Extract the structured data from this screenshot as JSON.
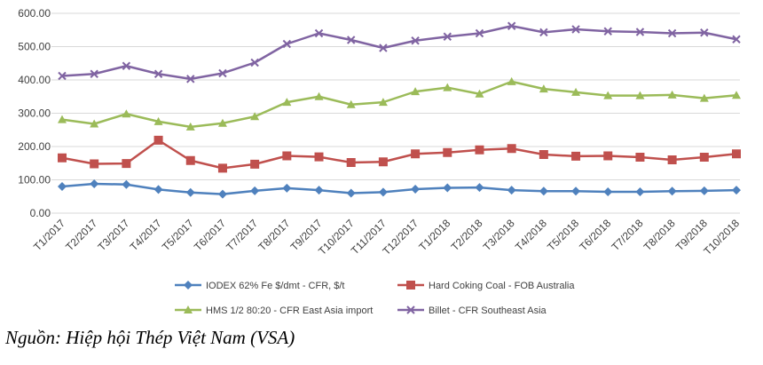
{
  "chart_data": {
    "type": "line",
    "title": "",
    "xlabel": "",
    "ylabel": "",
    "ylim": [
      0,
      600
    ],
    "y_ticks": [
      "0.00",
      "100.00",
      "200.00",
      "300.00",
      "400.00",
      "500.00",
      "600.00"
    ],
    "y_tick_values": [
      0,
      100,
      200,
      300,
      400,
      500,
      600
    ],
    "grid": true,
    "legend_position": "bottom",
    "categories": [
      "T1/2017",
      "T2/2017",
      "T3/2017",
      "T4/2017",
      "T5/2017",
      "T6/2017",
      "T7/2017",
      "T8/2017",
      "T9/2017",
      "T10/2017",
      "T11/2017",
      "T12/2017",
      "T1/2018",
      "T2/2018",
      "T3/2018",
      "T4/2018",
      "T5/2018",
      "T6/2018",
      "T7/2018",
      "T8/2018",
      "T9/2018",
      "T10/2018"
    ],
    "series": [
      {
        "name": "IODEX 62% Fe $/dmt - CFR, $/t",
        "color": "#4f81bd",
        "marker": "diamond",
        "values": [
          80,
          88,
          86,
          71,
          62,
          57,
          67,
          75,
          69,
          60,
          63,
          72,
          76,
          77,
          69,
          66,
          66,
          64,
          64,
          66,
          67,
          69
        ]
      },
      {
        "name": "Hard Coking Coal - FOB Australia",
        "color": "#c0504d",
        "marker": "square",
        "values": [
          166,
          148,
          149,
          219,
          158,
          135,
          147,
          172,
          169,
          152,
          154,
          178,
          182,
          190,
          194,
          176,
          171,
          172,
          168,
          160,
          168,
          178
        ]
      },
      {
        "name": "HMS 1/2 80:20 - CFR East Asia import",
        "color": "#9bbb59",
        "marker": "triangle",
        "values": [
          281,
          268,
          298,
          275,
          259,
          270,
          290,
          333,
          350,
          326,
          333,
          365,
          377,
          358,
          395,
          373,
          363,
          353,
          353,
          355,
          345,
          354
        ]
      },
      {
        "name": "Billet - CFR Southeast Asia",
        "color": "#8064a2",
        "marker": "x",
        "values": [
          412,
          418,
          442,
          418,
          403,
          420,
          452,
          508,
          540,
          520,
          496,
          518,
          530,
          540,
          562,
          543,
          552,
          546,
          544,
          540,
          542,
          522
        ]
      }
    ]
  },
  "source_note": "Nguồn: Hiệp hội Thép Việt Nam (VSA)"
}
